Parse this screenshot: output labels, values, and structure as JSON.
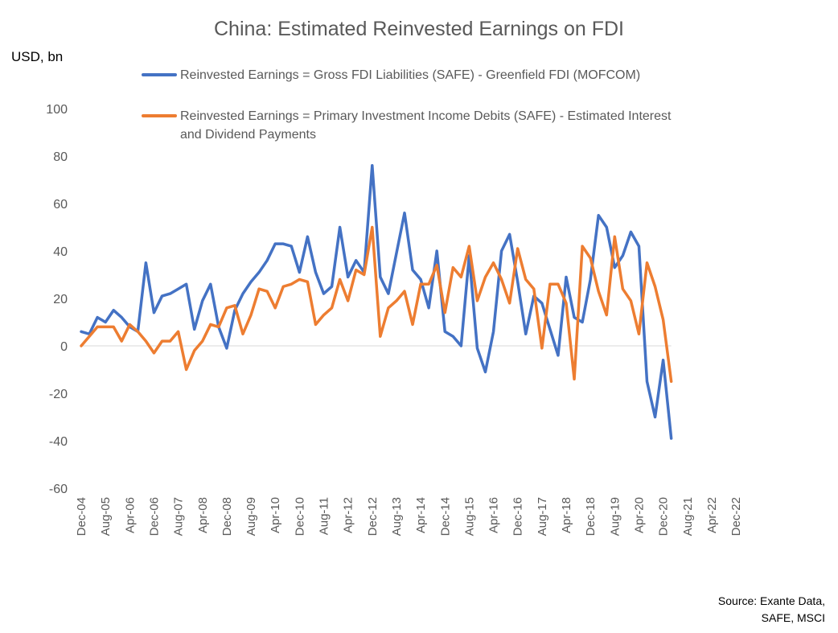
{
  "chart_data": {
    "type": "line",
    "title": "China: Estimated Reinvested Earnings on FDI",
    "ylabel": "USD, bn",
    "xlabel": "",
    "ylim": [
      -60,
      100
    ],
    "yticks": [
      -60,
      -40,
      -20,
      0,
      20,
      40,
      60,
      80,
      100
    ],
    "xtick_labels": [
      "Dec-04",
      "Aug-05",
      "Apr-06",
      "Dec-06",
      "Aug-07",
      "Apr-08",
      "Dec-08",
      "Aug-09",
      "Apr-10",
      "Dec-10",
      "Aug-11",
      "Apr-12",
      "Dec-12",
      "Aug-13",
      "Apr-14",
      "Dec-14",
      "Aug-15",
      "Apr-16",
      "Dec-16",
      "Aug-17",
      "Apr-18",
      "Dec-18",
      "Aug-19",
      "Apr-20",
      "Dec-20",
      "Aug-21",
      "Apr-22",
      "Dec-22"
    ],
    "series": [
      {
        "name": "Reinvested Earnings = Gross FDI Liabilities (SAFE) - Greenfield FDI (MOFCOM)",
        "color": "#4472C4",
        "values": [
          6,
          5,
          12,
          10,
          15,
          12,
          8,
          6,
          35,
          14,
          21,
          22,
          24,
          26,
          7,
          19,
          26,
          8,
          -1,
          15,
          22,
          27,
          31,
          36,
          43,
          43,
          42,
          31,
          46,
          31,
          22,
          25,
          50,
          29,
          36,
          31,
          76,
          29,
          22,
          39,
          56,
          32,
          28,
          16,
          40,
          6,
          4,
          0,
          38,
          -1,
          -11,
          6,
          40,
          47,
          27,
          5,
          21,
          18,
          7,
          -4,
          29,
          12,
          10,
          28,
          55,
          50,
          33,
          38,
          48,
          42,
          -15,
          -30,
          -6,
          -39
        ]
      },
      {
        "name": "Reinvested Earnings = Primary Investment Income Debits (SAFE) - Estimated Interest and Dividend Payments",
        "color": "#ED7D31",
        "values": [
          0,
          4,
          8,
          8,
          8,
          2,
          9,
          6,
          2,
          -3,
          2,
          2,
          6,
          -10,
          -2,
          2,
          9,
          8,
          16,
          17,
          5,
          13,
          24,
          23,
          16,
          25,
          26,
          28,
          27,
          9,
          13,
          16,
          28,
          19,
          32,
          30,
          50,
          4,
          16,
          19,
          23,
          9,
          26,
          26,
          34,
          14,
          33,
          29,
          42,
          19,
          29,
          35,
          28,
          18,
          41,
          28,
          24,
          -1,
          26,
          26,
          18,
          -14,
          42,
          37,
          23,
          13,
          46,
          24,
          19,
          5,
          35,
          25,
          11,
          -15
        ]
      }
    ],
    "legend_lines": [
      [
        "Reinvested Earnings = Gross FDI Liabilities (SAFE) - Greenfield FDI (MOFCOM)"
      ],
      [
        "Reinvested Earnings = Primary Investment Income Debits (SAFE) - Estimated Interest",
        "and Dividend Payments"
      ]
    ],
    "legend_placement": "top-center",
    "source_lines": [
      "Source: Exante Data,",
      "SAFE, MSCI"
    ]
  }
}
